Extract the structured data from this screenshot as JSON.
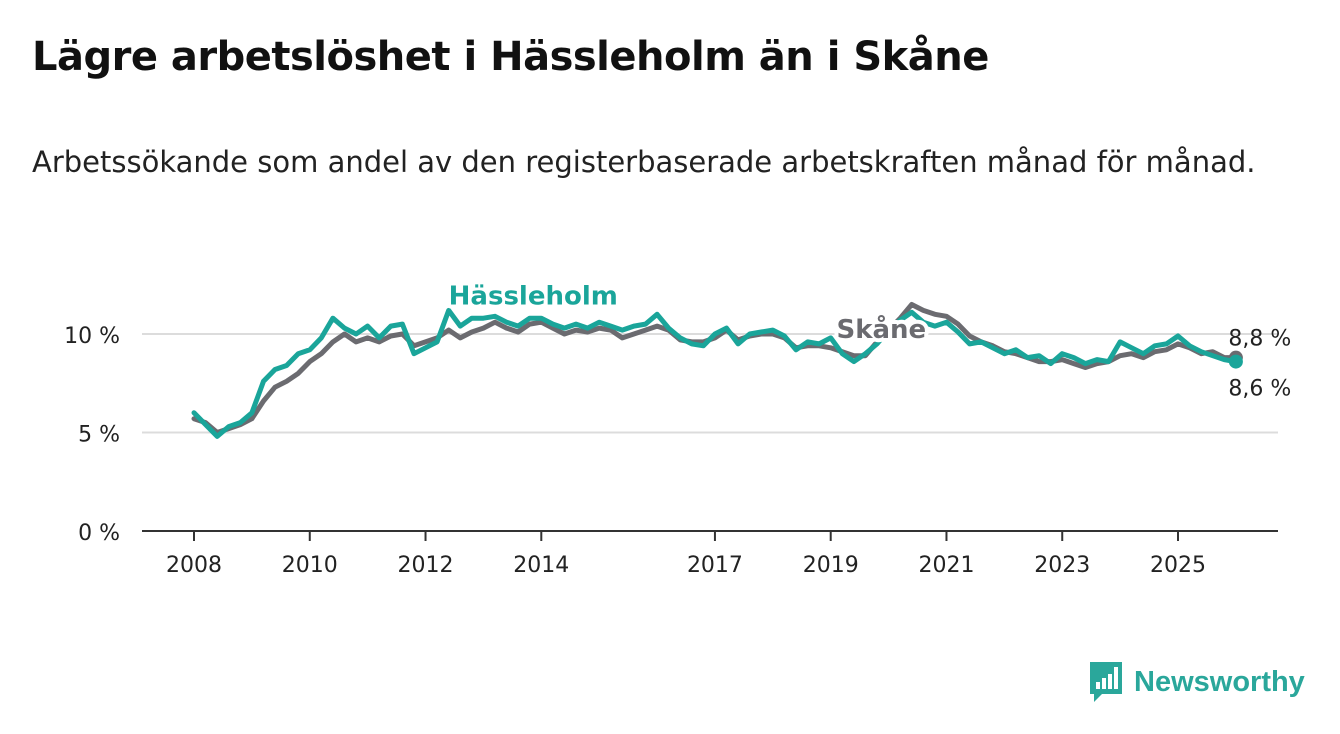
{
  "chart_data": {
    "type": "line",
    "title": "Lägre arbetslöshet i Hässleholm än i Skåne",
    "subtitle": "Arbetssökande som andel av den registerbaserade arbetskraften månad för månad.",
    "xlabel": "",
    "ylabel": "",
    "ylim": [
      0,
      12
    ],
    "xlim": [
      2008,
      2026.4
    ],
    "yticks": [
      {
        "value": 0,
        "label": "0 %"
      },
      {
        "value": 5,
        "label": "5 %"
      },
      {
        "value": 10,
        "label": "10 %"
      }
    ],
    "xticks": [
      {
        "value": 2008,
        "label": "2008"
      },
      {
        "value": 2010,
        "label": "2010"
      },
      {
        "value": 2012,
        "label": "2012"
      },
      {
        "value": 2014,
        "label": "2014"
      },
      {
        "value": 2017,
        "label": "2017"
      },
      {
        "value": 2019,
        "label": "2019"
      },
      {
        "value": 2021,
        "label": "2021"
      },
      {
        "value": 2023,
        "label": "2023"
      },
      {
        "value": 2025,
        "label": "2025"
      }
    ],
    "series": [
      {
        "name": "Skåne",
        "color": "#6b6b70",
        "end_label": "8,8 %",
        "points": [
          [
            2008.0,
            5.7
          ],
          [
            2008.2,
            5.5
          ],
          [
            2008.4,
            5.0
          ],
          [
            2008.6,
            5.2
          ],
          [
            2008.8,
            5.4
          ],
          [
            2009.0,
            5.7
          ],
          [
            2009.2,
            6.6
          ],
          [
            2009.4,
            7.3
          ],
          [
            2009.6,
            7.6
          ],
          [
            2009.8,
            8.0
          ],
          [
            2010.0,
            8.6
          ],
          [
            2010.2,
            9.0
          ],
          [
            2010.4,
            9.6
          ],
          [
            2010.6,
            10.0
          ],
          [
            2010.8,
            9.6
          ],
          [
            2011.0,
            9.8
          ],
          [
            2011.2,
            9.6
          ],
          [
            2011.4,
            9.9
          ],
          [
            2011.6,
            10.0
          ],
          [
            2011.8,
            9.4
          ],
          [
            2012.0,
            9.6
          ],
          [
            2012.2,
            9.8
          ],
          [
            2012.4,
            10.2
          ],
          [
            2012.6,
            9.8
          ],
          [
            2012.8,
            10.1
          ],
          [
            2013.0,
            10.3
          ],
          [
            2013.2,
            10.6
          ],
          [
            2013.4,
            10.3
          ],
          [
            2013.6,
            10.1
          ],
          [
            2013.8,
            10.5
          ],
          [
            2014.0,
            10.6
          ],
          [
            2014.2,
            10.3
          ],
          [
            2014.4,
            10.0
          ],
          [
            2014.6,
            10.2
          ],
          [
            2014.8,
            10.1
          ],
          [
            2015.0,
            10.3
          ],
          [
            2015.2,
            10.2
          ],
          [
            2015.4,
            9.8
          ],
          [
            2015.6,
            10.0
          ],
          [
            2015.8,
            10.2
          ],
          [
            2016.0,
            10.4
          ],
          [
            2016.2,
            10.2
          ],
          [
            2016.4,
            9.7
          ],
          [
            2016.6,
            9.6
          ],
          [
            2016.8,
            9.6
          ],
          [
            2017.0,
            9.8
          ],
          [
            2017.2,
            10.2
          ],
          [
            2017.4,
            9.7
          ],
          [
            2017.6,
            9.9
          ],
          [
            2017.8,
            10.0
          ],
          [
            2018.0,
            10.0
          ],
          [
            2018.2,
            9.8
          ],
          [
            2018.4,
            9.3
          ],
          [
            2018.6,
            9.4
          ],
          [
            2018.8,
            9.4
          ],
          [
            2019.0,
            9.3
          ],
          [
            2019.2,
            9.1
          ],
          [
            2019.4,
            8.9
          ],
          [
            2019.6,
            8.9
          ],
          [
            2019.8,
            9.6
          ],
          [
            2020.0,
            10.2
          ],
          [
            2020.2,
            10.8
          ],
          [
            2020.4,
            11.5
          ],
          [
            2020.6,
            11.2
          ],
          [
            2020.8,
            11.0
          ],
          [
            2021.0,
            10.9
          ],
          [
            2021.2,
            10.5
          ],
          [
            2021.4,
            9.9
          ],
          [
            2021.6,
            9.6
          ],
          [
            2021.8,
            9.4
          ],
          [
            2022.0,
            9.1
          ],
          [
            2022.2,
            9.0
          ],
          [
            2022.4,
            8.8
          ],
          [
            2022.6,
            8.6
          ],
          [
            2022.8,
            8.6
          ],
          [
            2023.0,
            8.7
          ],
          [
            2023.2,
            8.5
          ],
          [
            2023.4,
            8.3
          ],
          [
            2023.6,
            8.5
          ],
          [
            2023.8,
            8.6
          ],
          [
            2024.0,
            8.9
          ],
          [
            2024.2,
            9.0
          ],
          [
            2024.4,
            8.8
          ],
          [
            2024.6,
            9.1
          ],
          [
            2024.8,
            9.2
          ],
          [
            2025.0,
            9.5
          ],
          [
            2025.2,
            9.3
          ],
          [
            2025.4,
            9.0
          ],
          [
            2025.6,
            9.1
          ],
          [
            2025.8,
            8.8
          ],
          [
            2026.0,
            8.8
          ]
        ]
      },
      {
        "name": "Hässleholm",
        "color": "#1aa59a",
        "end_label": "8,6 %",
        "points": [
          [
            2008.0,
            6.0
          ],
          [
            2008.2,
            5.4
          ],
          [
            2008.4,
            4.8
          ],
          [
            2008.6,
            5.3
          ],
          [
            2008.8,
            5.5
          ],
          [
            2009.0,
            6.0
          ],
          [
            2009.2,
            7.6
          ],
          [
            2009.4,
            8.2
          ],
          [
            2009.6,
            8.4
          ],
          [
            2009.8,
            9.0
          ],
          [
            2010.0,
            9.2
          ],
          [
            2010.2,
            9.8
          ],
          [
            2010.4,
            10.8
          ],
          [
            2010.6,
            10.3
          ],
          [
            2010.8,
            10.0
          ],
          [
            2011.0,
            10.4
          ],
          [
            2011.2,
            9.8
          ],
          [
            2011.4,
            10.4
          ],
          [
            2011.6,
            10.5
          ],
          [
            2011.8,
            9.0
          ],
          [
            2012.0,
            9.3
          ],
          [
            2012.2,
            9.6
          ],
          [
            2012.4,
            11.2
          ],
          [
            2012.6,
            10.4
          ],
          [
            2012.8,
            10.8
          ],
          [
            2013.0,
            10.8
          ],
          [
            2013.2,
            10.9
          ],
          [
            2013.4,
            10.6
          ],
          [
            2013.6,
            10.4
          ],
          [
            2013.8,
            10.8
          ],
          [
            2014.0,
            10.8
          ],
          [
            2014.2,
            10.5
          ],
          [
            2014.4,
            10.3
          ],
          [
            2014.6,
            10.5
          ],
          [
            2014.8,
            10.3
          ],
          [
            2015.0,
            10.6
          ],
          [
            2015.2,
            10.4
          ],
          [
            2015.4,
            10.2
          ],
          [
            2015.6,
            10.4
          ],
          [
            2015.8,
            10.5
          ],
          [
            2016.0,
            11.0
          ],
          [
            2016.2,
            10.3
          ],
          [
            2016.4,
            9.8
          ],
          [
            2016.6,
            9.5
          ],
          [
            2016.8,
            9.4
          ],
          [
            2017.0,
            10.0
          ],
          [
            2017.2,
            10.3
          ],
          [
            2017.4,
            9.5
          ],
          [
            2017.6,
            10.0
          ],
          [
            2017.8,
            10.1
          ],
          [
            2018.0,
            10.2
          ],
          [
            2018.2,
            9.9
          ],
          [
            2018.4,
            9.2
          ],
          [
            2018.6,
            9.6
          ],
          [
            2018.8,
            9.5
          ],
          [
            2019.0,
            9.8
          ],
          [
            2019.2,
            9.0
          ],
          [
            2019.4,
            8.6
          ],
          [
            2019.6,
            9.0
          ],
          [
            2019.8,
            9.5
          ],
          [
            2020.0,
            10.2
          ],
          [
            2020.2,
            10.7
          ],
          [
            2020.4,
            11.1
          ],
          [
            2020.6,
            10.6
          ],
          [
            2020.8,
            10.4
          ],
          [
            2021.0,
            10.6
          ],
          [
            2021.2,
            10.1
          ],
          [
            2021.4,
            9.5
          ],
          [
            2021.6,
            9.6
          ],
          [
            2021.8,
            9.3
          ],
          [
            2022.0,
            9.0
          ],
          [
            2022.2,
            9.2
          ],
          [
            2022.4,
            8.8
          ],
          [
            2022.6,
            8.9
          ],
          [
            2022.8,
            8.5
          ],
          [
            2023.0,
            9.0
          ],
          [
            2023.2,
            8.8
          ],
          [
            2023.4,
            8.5
          ],
          [
            2023.6,
            8.7
          ],
          [
            2023.8,
            8.6
          ],
          [
            2024.0,
            9.6
          ],
          [
            2024.2,
            9.3
          ],
          [
            2024.4,
            9.0
          ],
          [
            2024.6,
            9.4
          ],
          [
            2024.8,
            9.5
          ],
          [
            2025.0,
            9.9
          ],
          [
            2025.2,
            9.4
          ],
          [
            2025.4,
            9.1
          ],
          [
            2025.6,
            8.9
          ],
          [
            2025.8,
            8.7
          ],
          [
            2026.0,
            8.6
          ]
        ]
      }
    ],
    "annotations": [
      {
        "text": "Hässleholm",
        "series": "Hässleholm",
        "x": 2012.4,
        "y": 11.5
      },
      {
        "text": "Skåne",
        "series": "Skåne",
        "x": 2019.1,
        "y": 9.8
      }
    ]
  },
  "branding": {
    "name": "Newsworthy",
    "icon": "newsworthy-logo-icon",
    "color": "#2aa79b"
  }
}
